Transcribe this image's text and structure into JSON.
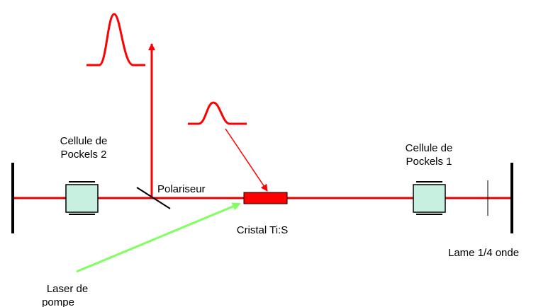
{
  "labels": {
    "pockels2": [
      "Cellule de",
      "Pockels 2"
    ],
    "polariseur": "Polariseur",
    "cristal": "Cristal Ti:S",
    "pockels1": [
      "Cellule de",
      "Pockels 1"
    ],
    "lame": "Lame 1/4 onde",
    "laser": [
      "Laser de",
      "pompe"
    ]
  }
}
